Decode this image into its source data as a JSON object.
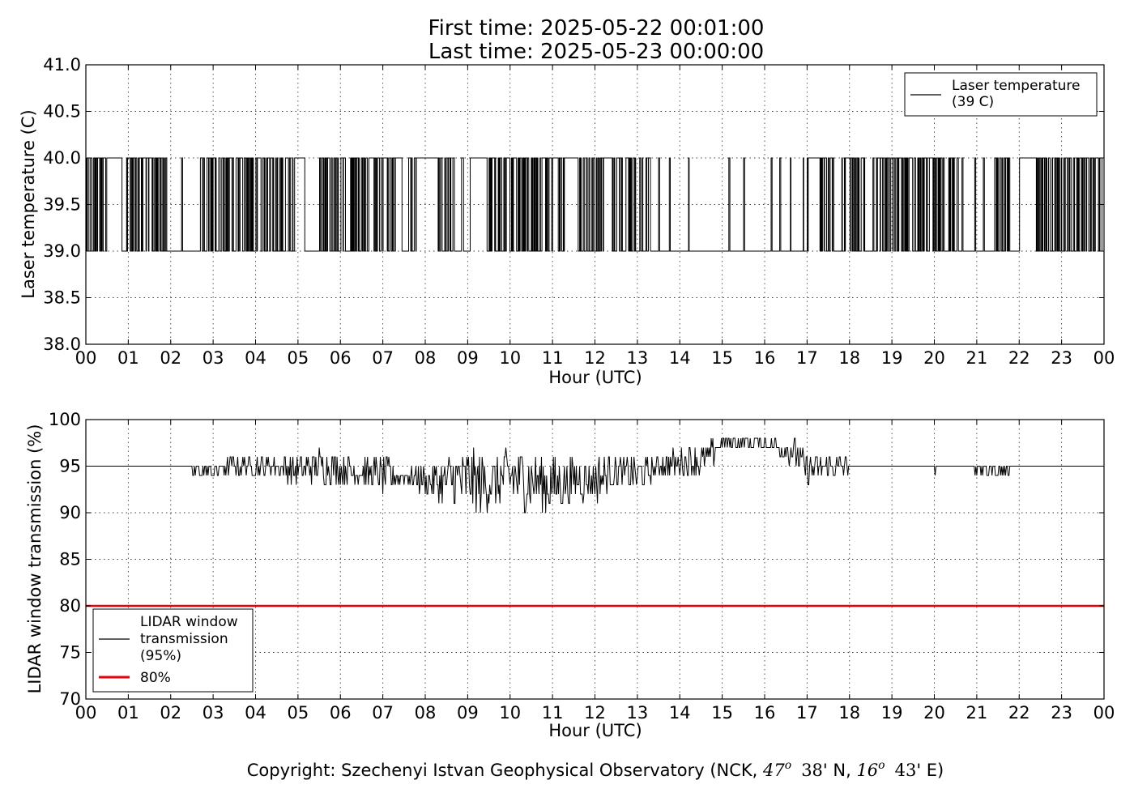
{
  "header": {
    "first_time": "First time: 2025-05-22 00:01:00",
    "last_time": "Last time: 2025-05-23 00:00:00"
  },
  "footer": {
    "copyright_prefix": "Copyright: Szechenyi Istvan Geophysical Observatory (NCK, ",
    "lat_deg": "47",
    "lat_min": "38",
    "lat_dir": "' N, ",
    "lon_deg": "16",
    "lon_min": "43",
    "lon_dir": "' E)",
    "degree_sup": "o"
  },
  "chart_data": [
    {
      "type": "line",
      "xlabel": "Hour (UTC)",
      "ylabel": "Laser temperature (C)",
      "xlim": [
        0,
        24
      ],
      "ylim": [
        38.0,
        41.0
      ],
      "x_ticks": [
        "00",
        "01",
        "02",
        "03",
        "04",
        "05",
        "06",
        "07",
        "08",
        "09",
        "10",
        "11",
        "12",
        "13",
        "14",
        "15",
        "16",
        "17",
        "18",
        "19",
        "20",
        "21",
        "22",
        "23",
        "00"
      ],
      "y_ticks": [
        "38.0",
        "38.5",
        "39.0",
        "39.5",
        "40.0",
        "40.5",
        "41.0"
      ],
      "grid": true,
      "legend_position": "top-right",
      "series": [
        {
          "name": "Laser temperature\n(39 C)",
          "legend_lines": [
            "Laser temperature",
            "(39 C)"
          ],
          "color": "#000000",
          "values_set": [
            39.0,
            40.0
          ],
          "segments_at_40": [
            [
              0.03,
              0.07
            ],
            [
              0.1,
              0.13
            ],
            [
              0.17,
              0.2
            ],
            [
              0.23,
              0.25
            ],
            [
              0.28,
              0.31
            ],
            [
              0.34,
              0.36
            ],
            [
              0.4,
              0.43
            ],
            [
              0.5,
              0.85
            ],
            [
              1.0,
              1.02
            ],
            [
              1.05,
              1.08
            ],
            [
              1.12,
              1.14
            ],
            [
              1.18,
              1.2
            ],
            [
              1.27,
              1.3
            ],
            [
              1.35,
              1.37
            ],
            [
              1.48,
              1.5
            ],
            [
              1.62,
              1.64
            ],
            [
              1.73,
              1.75
            ],
            [
              1.88,
              1.9
            ],
            [
              2.25,
              2.27
            ],
            [
              2.7,
              2.73
            ],
            [
              2.85,
              2.87
            ],
            [
              3.05,
              3.07
            ],
            [
              3.2,
              3.23
            ],
            [
              3.45,
              3.48
            ],
            [
              4.05,
              4.07
            ],
            [
              4.7,
              4.73
            ],
            [
              5.0,
              5.15
            ],
            [
              5.7,
              5.73
            ],
            [
              6.75,
              6.78
            ],
            [
              7.3,
              7.45
            ],
            [
              7.6,
              7.62
            ],
            [
              7.8,
              8.3
            ],
            [
              8.65,
              8.68
            ],
            [
              8.85,
              8.9
            ],
            [
              9.05,
              9.45
            ],
            [
              10.8,
              10.83
            ],
            [
              11.0,
              11.1
            ],
            [
              11.3,
              11.6
            ],
            [
              12.2,
              12.4
            ],
            [
              12.6,
              12.62
            ],
            [
              12.9,
              12.92
            ],
            [
              13.2,
              13.22
            ],
            [
              13.5,
              13.52
            ],
            [
              13.75,
              13.77
            ],
            [
              14.2,
              14.22
            ],
            [
              15.15,
              15.17
            ],
            [
              15.5,
              15.52
            ],
            [
              16.15,
              16.17
            ],
            [
              16.35,
              16.37
            ],
            [
              16.6,
              16.62
            ],
            [
              16.9,
              16.92
            ],
            [
              17.05,
              17.3
            ],
            [
              17.6,
              17.62
            ],
            [
              17.9,
              18.0
            ],
            [
              18.3,
              18.32
            ],
            [
              18.55,
              18.57
            ],
            [
              18.8,
              18.82
            ],
            [
              19.1,
              19.12
            ],
            [
              19.45,
              19.47
            ],
            [
              19.7,
              19.72
            ],
            [
              19.9,
              19.92
            ],
            [
              20.15,
              20.17
            ],
            [
              20.4,
              20.42
            ],
            [
              20.65,
              20.67
            ],
            [
              20.95,
              20.97
            ],
            [
              21.15,
              21.17
            ],
            [
              21.55,
              21.57
            ],
            [
              21.75,
              21.77
            ],
            [
              22.0,
              22.4
            ],
            [
              22.9,
              22.92
            ],
            [
              23.2,
              23.22
            ],
            [
              23.5,
              23.52
            ],
            [
              23.7,
              23.72
            ],
            [
              23.95,
              24.0
            ]
          ],
          "dense_switching_intervals": [
            [
              0.0,
              0.5
            ],
            [
              0.95,
              1.9
            ],
            [
              2.7,
              3.5
            ],
            [
              3.5,
              5.0
            ],
            [
              5.5,
              7.4
            ],
            [
              7.6,
              8.6
            ],
            [
              9.5,
              12.95
            ],
            [
              13.05,
              13.3
            ],
            [
              17.0,
              17.6
            ],
            [
              17.8,
              18.4
            ],
            [
              18.6,
              20.6
            ],
            [
              21.4,
              21.8
            ],
            [
              22.0,
              23.9
            ]
          ]
        }
      ]
    },
    {
      "type": "line",
      "xlabel": "Hour (UTC)",
      "ylabel": "LIDAR window transmission (%)",
      "xlim": [
        0,
        24
      ],
      "ylim": [
        70,
        100
      ],
      "x_ticks": [
        "00",
        "01",
        "02",
        "03",
        "04",
        "05",
        "06",
        "07",
        "08",
        "09",
        "10",
        "11",
        "12",
        "13",
        "14",
        "15",
        "16",
        "17",
        "18",
        "19",
        "20",
        "21",
        "22",
        "23",
        "00"
      ],
      "y_ticks": [
        "70",
        "75",
        "80",
        "85",
        "90",
        "95",
        "100"
      ],
      "grid": true,
      "legend_position": "bottom-left",
      "series": [
        {
          "name": "LIDAR window\ntransmission\n(95%)",
          "legend_lines": [
            "LIDAR window",
            "transmission",
            "(95%)"
          ],
          "color": "#000000",
          "baseline": 95,
          "profile": [
            {
              "x": 0.0,
              "lo": 95,
              "hi": 95
            },
            {
              "x": 2.45,
              "lo": 95,
              "hi": 95
            },
            {
              "x": 2.5,
              "lo": 94,
              "hi": 95
            },
            {
              "x": 3.0,
              "lo": 94,
              "hi": 95
            },
            {
              "x": 3.5,
              "lo": 94,
              "hi": 96
            },
            {
              "x": 4.5,
              "lo": 94,
              "hi": 96
            },
            {
              "x": 5.0,
              "lo": 93,
              "hi": 96
            },
            {
              "x": 5.5,
              "lo": 93,
              "hi": 97
            },
            {
              "x": 6.5,
              "lo": 93,
              "hi": 96
            },
            {
              "x": 7.0,
              "lo": 92,
              "hi": 96
            },
            {
              "x": 7.5,
              "lo": 93,
              "hi": 95
            },
            {
              "x": 8.0,
              "lo": 92,
              "hi": 95
            },
            {
              "x": 8.5,
              "lo": 91,
              "hi": 96
            },
            {
              "x": 9.0,
              "lo": 90,
              "hi": 97
            },
            {
              "x": 9.5,
              "lo": 90,
              "hi": 96
            },
            {
              "x": 10.0,
              "lo": 91,
              "hi": 97
            },
            {
              "x": 10.5,
              "lo": 90,
              "hi": 97
            },
            {
              "x": 11.0,
              "lo": 90,
              "hi": 96
            },
            {
              "x": 11.5,
              "lo": 91,
              "hi": 96
            },
            {
              "x": 12.0,
              "lo": 91,
              "hi": 96
            },
            {
              "x": 12.5,
              "lo": 93,
              "hi": 96
            },
            {
              "x": 13.0,
              "lo": 92,
              "hi": 96
            },
            {
              "x": 13.5,
              "lo": 94,
              "hi": 96
            },
            {
              "x": 14.0,
              "lo": 94,
              "hi": 97
            },
            {
              "x": 14.5,
              "lo": 94,
              "hi": 97
            },
            {
              "x": 14.8,
              "lo": 95,
              "hi": 98
            },
            {
              "x": 15.0,
              "lo": 97,
              "hi": 98
            },
            {
              "x": 15.5,
              "lo": 97,
              "hi": 98
            },
            {
              "x": 16.0,
              "lo": 97,
              "hi": 98
            },
            {
              "x": 16.3,
              "lo": 96,
              "hi": 98
            },
            {
              "x": 16.7,
              "lo": 95,
              "hi": 98
            },
            {
              "x": 17.0,
              "lo": 93,
              "hi": 96
            },
            {
              "x": 17.5,
              "lo": 94,
              "hi": 96
            },
            {
              "x": 18.0,
              "lo": 94,
              "hi": 96
            },
            {
              "x": 18.05,
              "lo": 95,
              "hi": 95
            },
            {
              "x": 20.0,
              "lo": 95,
              "hi": 95
            },
            {
              "x": 20.02,
              "lo": 94,
              "hi": 95
            },
            {
              "x": 20.1,
              "lo": 95,
              "hi": 95
            },
            {
              "x": 21.6,
              "lo": 94,
              "hi": 95
            },
            {
              "x": 21.75,
              "lo": 94,
              "hi": 95
            },
            {
              "x": 21.8,
              "lo": 95,
              "hi": 95
            },
            {
              "x": 24.0,
              "lo": 95,
              "hi": 95
            }
          ]
        },
        {
          "name": "80%",
          "legend_lines": [
            "80%"
          ],
          "color": "#e8000b",
          "constant": 80
        }
      ]
    }
  ]
}
